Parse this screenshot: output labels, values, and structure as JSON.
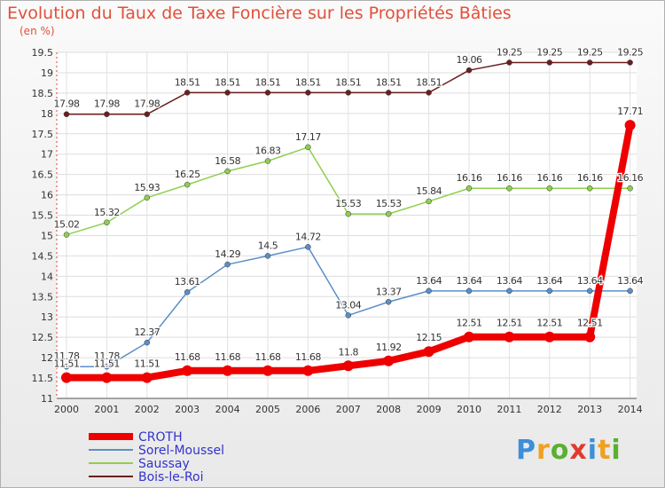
{
  "title": "Evolution du Taux de Taxe Foncière sur les Propriétés Bâties",
  "unit_label": "(en %)",
  "logo": {
    "letters": [
      "P",
      "r",
      "o",
      "x",
      "i",
      "t",
      "i"
    ],
    "colors": [
      "#3c8fd8",
      "#f0a020",
      "#5ab030",
      "#e03a30",
      "#3c8fd8",
      "#f0a020",
      "#5ab030"
    ]
  },
  "chart_data": {
    "type": "line",
    "x": [
      "2000",
      "2001",
      "2002",
      "2003",
      "2004",
      "2005",
      "2006",
      "2007",
      "2008",
      "2009",
      "2010",
      "2011",
      "2012",
      "2013",
      "2014"
    ],
    "ylim": [
      11,
      19.5
    ],
    "yticks": [
      "11",
      "11.5",
      "12",
      "12.5",
      "13",
      "13.5",
      "14",
      "14.5",
      "15",
      "15.5",
      "16",
      "16.5",
      "17",
      "17.5",
      "18",
      "18.5",
      "19",
      "19.5"
    ],
    "grid": true,
    "legend_position": "bottom-left",
    "series": [
      {
        "name": "Bois-le-Roi",
        "color": "#6b1f1f",
        "width": 1.5,
        "values": [
          17.98,
          17.98,
          17.98,
          18.51,
          18.51,
          18.51,
          18.51,
          18.51,
          18.51,
          18.51,
          19.06,
          19.25,
          19.25,
          19.25,
          19.25
        ],
        "labels": [
          "17.98",
          "17.98",
          "17.98",
          "18.51",
          "18.51",
          "18.51",
          "18.51",
          "18.51",
          "18.51",
          "18.51",
          "19.06",
          "19.25",
          "19.25",
          "19.25",
          "19.25"
        ]
      },
      {
        "name": "Saussay",
        "color": "#8fcf50",
        "width": 1.5,
        "values": [
          15.02,
          15.32,
          15.93,
          16.25,
          16.58,
          16.83,
          17.17,
          15.53,
          15.53,
          15.84,
          16.16,
          16.16,
          16.16,
          16.16,
          16.16
        ],
        "labels": [
          "15.02",
          "15.32",
          "15.93",
          "16.25",
          "16.58",
          "16.83",
          "17.17",
          "15.53",
          "15.53",
          "15.84",
          "16.16",
          "16.16",
          "16.16",
          "16.16",
          "16.16"
        ]
      },
      {
        "name": "Sorel-Moussel",
        "color": "#5b8fc6",
        "width": 1.5,
        "values": [
          11.78,
          11.78,
          12.37,
          13.61,
          14.29,
          14.5,
          14.72,
          13.04,
          13.37,
          13.64,
          13.64,
          13.64,
          13.64,
          13.64,
          13.64
        ],
        "labels": [
          "11.78",
          "11.78",
          "12.37",
          "13.61",
          "14.29",
          "14.5",
          "14.72",
          "13.04",
          "13.37",
          "13.64",
          "13.64",
          "13.64",
          "13.64",
          "13.64",
          "13.64"
        ]
      },
      {
        "name": "CROTH",
        "color": "#ee0000",
        "width": 8,
        "values": [
          11.51,
          11.51,
          11.51,
          11.68,
          11.68,
          11.68,
          11.68,
          11.8,
          11.92,
          12.15,
          12.51,
          12.51,
          12.51,
          12.51,
          17.71
        ],
        "labels": [
          "11.51",
          "11.51",
          "11.51",
          "11.68",
          "11.68",
          "11.68",
          "11.68",
          "11.8",
          "11.92",
          "12.15",
          "12.51",
          "12.51",
          "12.51",
          "12.51",
          "17.71"
        ]
      }
    ],
    "legend": [
      {
        "name": "CROTH",
        "color": "#ee0000"
      },
      {
        "name": "Sorel-Moussel",
        "color": "#5b8fc6"
      },
      {
        "name": "Saussay",
        "color": "#8fcf50"
      },
      {
        "name": "Bois-le-Roi",
        "color": "#6b1f1f"
      }
    ]
  }
}
